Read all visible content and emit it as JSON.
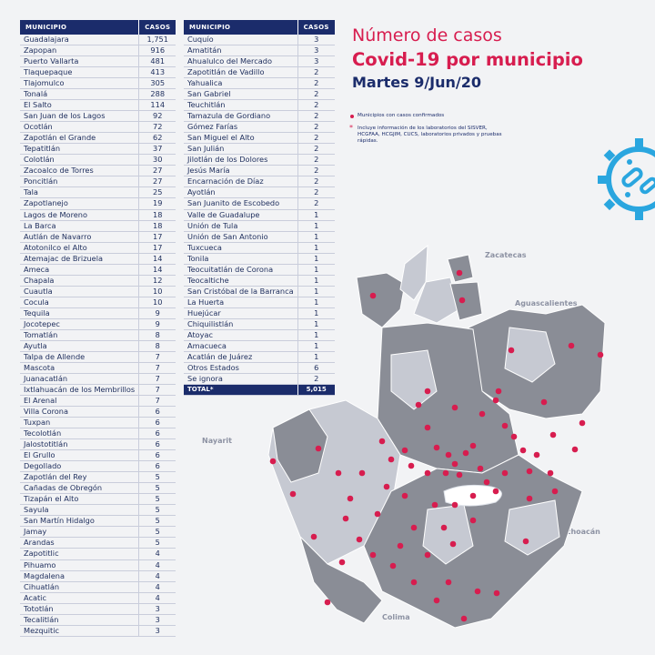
{
  "header": {
    "line1": "Número de casos",
    "line2": "Covid-19 por municipio",
    "line3": "Martes 9/Jun/20"
  },
  "legend": {
    "dot": "Municipios con casos confirmados",
    "note": "Incluye información de los laboratorios del SISVER, HCGFAA, HCGJIM, CUCS, laboratorios privados y pruebas rápidas."
  },
  "table": {
    "col_municipio": "MUNICIPIO",
    "col_casos": "CASOS",
    "left_rows": [
      [
        "Guadalajara",
        "1,751"
      ],
      [
        "Zapopan",
        "916"
      ],
      [
        "Puerto Vallarta",
        "481"
      ],
      [
        "Tlaquepaque",
        "413"
      ],
      [
        "Tlajomulco",
        "305"
      ],
      [
        "Tonalá",
        "288"
      ],
      [
        "El Salto",
        "114"
      ],
      [
        "San Juan de los Lagos",
        "92"
      ],
      [
        "Ocotlán",
        "72"
      ],
      [
        "Zapotlán el Grande",
        "62"
      ],
      [
        "Tepatitlán",
        "37"
      ],
      [
        "Colotlán",
        "30"
      ],
      [
        "Zacoalco de Torres",
        "27"
      ],
      [
        "Poncitlán",
        "27"
      ],
      [
        "Tala",
        "25"
      ],
      [
        "Zapotlanejo",
        "19"
      ],
      [
        "Lagos de Moreno",
        "18"
      ],
      [
        "La Barca",
        "18"
      ],
      [
        "Autlán de Navarro",
        "17"
      ],
      [
        "Atotonilco el Alto",
        "17"
      ],
      [
        "Atemajac de Brizuela",
        "14"
      ],
      [
        "Ameca",
        "14"
      ],
      [
        "Chapala",
        "12"
      ],
      [
        "Cuautla",
        "10"
      ],
      [
        "Cocula",
        "10"
      ],
      [
        "Tequila",
        "9"
      ],
      [
        "Jocotepec",
        "9"
      ],
      [
        "Tomatlán",
        "8"
      ],
      [
        "Ayutla",
        "8"
      ],
      [
        "Talpa de Allende",
        "7"
      ],
      [
        "Mascota",
        "7"
      ],
      [
        "Juanacatlán",
        "7"
      ],
      [
        "Ixtlahuacán de los Membrillos",
        "7"
      ],
      [
        "El Arenal",
        "7"
      ],
      [
        "Villa Corona",
        "6"
      ],
      [
        "Tuxpan",
        "6"
      ],
      [
        "Tecolotlán",
        "6"
      ],
      [
        "Jalostotitlán",
        "6"
      ],
      [
        "El Grullo",
        "6"
      ],
      [
        "Degollado",
        "6"
      ],
      [
        "Zapotlán del Rey",
        "5"
      ],
      [
        "Cañadas de Obregón",
        "5"
      ],
      [
        "Tizapán el Alto",
        "5"
      ],
      [
        "Sayula",
        "5"
      ],
      [
        "San Martín Hidalgo",
        "5"
      ],
      [
        "Jamay",
        "5"
      ],
      [
        "Arandas",
        "5"
      ],
      [
        "Zapotitlic",
        "4"
      ],
      [
        "Pihuamo",
        "4"
      ],
      [
        "Magdalena",
        "4"
      ],
      [
        "Cihuatlán",
        "4"
      ],
      [
        "Acatic",
        "4"
      ],
      [
        "Tototlán",
        "3"
      ],
      [
        "Tecalitlán",
        "3"
      ],
      [
        "Mezquitic",
        "3"
      ]
    ],
    "right_rows": [
      [
        "Cuquío",
        "3"
      ],
      [
        "Amatitán",
        "3"
      ],
      [
        "Ahualulco del Mercado",
        "3"
      ],
      [
        "Zapotitlán de Vadillo",
        "2"
      ],
      [
        "Yahualica",
        "2"
      ],
      [
        "San Gabriel",
        "2"
      ],
      [
        "Teuchitlán",
        "2"
      ],
      [
        "Tamazula de Gordiano",
        "2"
      ],
      [
        "Gómez Farías",
        "2"
      ],
      [
        "San Miguel el Alto",
        "2"
      ],
      [
        "San Julián",
        "2"
      ],
      [
        "Jilotlán de los Dolores",
        "2"
      ],
      [
        "Jesús María",
        "2"
      ],
      [
        "Encarnación de Díaz",
        "2"
      ],
      [
        "Ayotlán",
        "2"
      ],
      [
        "San Juanito de Escobedo",
        "2"
      ],
      [
        "Valle de Guadalupe",
        "1"
      ],
      [
        "Unión de Tula",
        "1"
      ],
      [
        "Unión de San Antonio",
        "1"
      ],
      [
        "Tuxcueca",
        "1"
      ],
      [
        "Tonila",
        "1"
      ],
      [
        "Teocuitatlán de Corona",
        "1"
      ],
      [
        "Teocaltiche",
        "1"
      ],
      [
        "San Cristóbal de la Barranca",
        "1"
      ],
      [
        "La Huerta",
        "1"
      ],
      [
        "Huejúcar",
        "1"
      ],
      [
        "Chiquilistlán",
        "1"
      ],
      [
        "Atoyac",
        "1"
      ],
      [
        "Amacueca",
        "1"
      ],
      [
        "Acatlán de Juárez",
        "1"
      ],
      [
        "Otros Estados",
        "6"
      ],
      [
        "Se ignora",
        "2"
      ]
    ],
    "total_label": "TOTAL*",
    "total_value": "5,015"
  },
  "map": {
    "state_labels": [
      "Zacatecas",
      "Aguascalientes",
      "Nayarit",
      "Michoacán",
      "Colima"
    ],
    "colors": {
      "dark": "#8a8d96",
      "light": "#c6c9d2",
      "dot": "#d71d4f",
      "water": "#ffffff"
    }
  }
}
